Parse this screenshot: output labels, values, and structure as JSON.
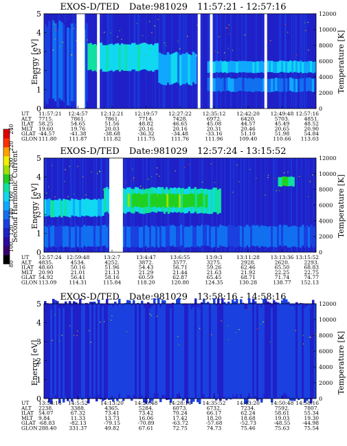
{
  "colorbar": {
    "label": "Second Harmonic Current",
    "ticks": [
      "240",
      "220",
      "200",
      "180",
      "160",
      "140",
      "120",
      "100",
      "80"
    ],
    "colors": [
      "#000000",
      "#3a0070",
      "#2a0aa0",
      "#2020c8",
      "#1a40e0",
      "#1070f0",
      "#10a8ff",
      "#10d8f0",
      "#10e0a0",
      "#20d020",
      "#a0e000",
      "#f0f000",
      "#ffa000",
      "#ff3000",
      "#e00000"
    ]
  },
  "panels": [
    {
      "title": "EXOS-D/TED",
      "date": "Date:981029",
      "time_range": "11:57:21 - 12:57:16",
      "ylabel": "Energy [eV]",
      "y2label": "Temperature [K]",
      "yticks": [
        "5",
        "4",
        "3",
        "2",
        "1",
        "0"
      ],
      "y2ticks": [
        "12000",
        "10000",
        "8000",
        "6000",
        "4000",
        "2000",
        "0"
      ],
      "ut_row_names": [
        "UT",
        "ALT",
        "ILAT",
        "MLT",
        "GLAT",
        "GLON"
      ],
      "columns": [
        [
          "11:57:21",
          "7715.",
          "58.25",
          "19.60",
          "-44.57",
          "111.80"
        ],
        [
          "12:4:57",
          "7861.",
          "54.65",
          "19.76",
          "-41.38",
          "111.87"
        ],
        [
          "12:12:21",
          "7861.",
          "51.56",
          "20.03",
          "-38.68",
          "111.82"
        ],
        [
          "12:19:57",
          "7714.",
          "48.82",
          "20.16",
          "-36.32",
          "111.75"
        ],
        [
          "12:27:22",
          "7428.",
          "46.65",
          "20.16",
          "-34.48",
          "111.76"
        ],
        [
          "12:35:12",
          "6972.",
          "45.08",
          "20.31",
          "-33.16",
          "111.96"
        ],
        [
          "12:42:20",
          "6420.",
          "44.57",
          "20.46",
          "51.10",
          "109.40"
        ],
        [
          "12:49:48",
          "5703.",
          "45.49",
          "20.65",
          "51.98",
          "110.66"
        ],
        [
          "12:57:16",
          "4851.",
          "48.52",
          "20.90",
          "54.84",
          "113.03"
        ]
      ]
    },
    {
      "title": "EXOS-D/TED",
      "date": "Date:981029",
      "time_range": "12:57:24 - 13:15:52",
      "ylabel": "Energy [eV]",
      "y2label": "Temperature [K]",
      "yticks": [
        "5",
        "4",
        "3",
        "2",
        "1",
        "0"
      ],
      "y2ticks": [
        "12000",
        "10000",
        "8000",
        "6000",
        "4000",
        "2000",
        "0"
      ],
      "ut_row_names": [
        "UT",
        "ALT",
        "ILAT",
        "MLT",
        "GLAT",
        "GLON"
      ],
      "columns": [
        [
          "12:57:24",
          "4835.",
          "48.60",
          "20.90",
          "54.92",
          "113.09"
        ],
        [
          "12:59:48",
          "4534.",
          "50.16",
          "21.01",
          "56.41",
          "114.31"
        ],
        [
          "13:2:7",
          "4252.",
          "51.96",
          "21.13",
          "58.16",
          "115.84"
        ],
        [
          "13:4:47",
          "3872.",
          "54.43",
          "21.29",
          "60.59",
          "118.20"
        ],
        [
          "13:6:55",
          "3577.",
          "56.71",
          "21.44",
          "62.87",
          "120.80"
        ],
        [
          "13:9:3",
          "3275.",
          "59.26",
          "21.63",
          "65.45",
          "124.35"
        ],
        [
          "13:11:28",
          "2928.",
          "62.46",
          "21.92",
          "68.71",
          "130.28"
        ],
        [
          "13:13:36",
          "2620.",
          "65.50",
          "22.25",
          "71.74",
          "138.77"
        ],
        [
          "13:15:52",
          "2293.",
          "68.83",
          "22.75",
          "74.77",
          "152.13"
        ]
      ]
    },
    {
      "title": "EXOS-D/TED",
      "date": "Date:981029",
      "time_range": "13:58:16 - 14:58:16",
      "ylabel": "Energy [eV]",
      "y2label": "Temperature [K]",
      "yticks": [
        "5",
        "4",
        "3",
        "2",
        "1",
        "0"
      ],
      "y2ticks": [
        "12000",
        "10000",
        "8000",
        "6000",
        "4000",
        "2000",
        "0"
      ],
      "ut_row_names": [
        "UT",
        "ALT",
        "ILAT",
        "MLT",
        "GLAT",
        "GLON"
      ],
      "columns": [
        [
          "13:58:16",
          "2238.",
          "54.07",
          "9.84",
          "-68.83",
          "288.40"
        ],
        [
          "14:5:52",
          "3388.",
          "67.32",
          "11.33",
          "-82.13",
          "331.37"
        ],
        [
          "14:13:20",
          "4365.",
          "73.41",
          "13.73",
          "-79.15",
          "49.82"
        ],
        [
          "14:20:48",
          "5284.",
          "73.42",
          "16.06",
          "-70.89",
          "67.61"
        ],
        [
          "14:28:16",
          "6073.",
          "70.24",
          "17.42",
          "-63.72",
          "72.75"
        ],
        [
          "14:35:52",
          "6732.",
          "66.17",
          "18.20",
          "-57.68",
          "74.73"
        ],
        [
          "14:43:20",
          "7234.",
          "62.24",
          "18.68",
          "-52.73",
          "75.46"
        ],
        [
          "14:50:48",
          "7592.",
          "58.61",
          "19.03",
          "-48.55",
          "75.63"
        ],
        [
          "14:58:16",
          "7807.",
          "55.34",
          "19.30",
          "-44.98",
          "75.54"
        ]
      ]
    }
  ],
  "chart_data": [
    {
      "type": "heatmap",
      "title": "EXOS-D/TED Date:981029 11:57:21 - 12:57:16",
      "xlabel": "",
      "ylabel": "Energy [eV]",
      "y2label": "Temperature [K]",
      "ylim": [
        0,
        5
      ],
      "y2lim": [
        0,
        12000
      ],
      "x_ticks": [
        "11:57:21",
        "12:4:57",
        "12:12:21",
        "12:19:57",
        "12:27:22",
        "12:35:12",
        "12:42:20",
        "12:49:48",
        "12:57:16"
      ],
      "bands": [
        {
          "x": [
            0.0,
            0.16
          ],
          "ylim": [
            0.3,
            4.4
          ],
          "level": 0.22
        },
        {
          "x": [
            0.16,
            0.42
          ],
          "ylim": [
            2.0,
            3.4
          ],
          "level": 0.48
        },
        {
          "x": [
            0.42,
            0.56
          ],
          "ylim": [
            1.3,
            2.9
          ],
          "level": 0.38
        },
        {
          "x": [
            0.6,
            1.0
          ],
          "ylim": [
            1.9,
            2.5
          ],
          "level": 0.4
        },
        {
          "x": [
            0.6,
            1.0
          ],
          "ylim": [
            0.9,
            1.6
          ],
          "level": 0.3
        }
      ],
      "gaps": [
        [
          0.12,
          0.15
        ],
        [
          0.195,
          0.205
        ],
        [
          0.565,
          0.575
        ],
        [
          0.61,
          0.62
        ],
        [
          0.81,
          0.82
        ]
      ]
    },
    {
      "type": "heatmap",
      "title": "EXOS-D/TED Date:981029 12:57:24 - 13:15:52",
      "xlabel": "",
      "ylabel": "Energy [eV]",
      "y2label": "Temperature [K]",
      "ylim": [
        0,
        5
      ],
      "y2lim": [
        0,
        12000
      ],
      "x_ticks": [
        "12:57:24",
        "12:59:48",
        "13:2:7",
        "13:4:47",
        "13:6:55",
        "13:9:3",
        "13:11:28",
        "13:13:36",
        "13:15:52"
      ],
      "bands": [
        {
          "x": [
            0.0,
            0.22
          ],
          "ylim": [
            1.9,
            2.8
          ],
          "level": 0.46
        },
        {
          "x": [
            0.22,
            0.65
          ],
          "ylim": [
            2.1,
            3.4
          ],
          "level": 0.52
        },
        {
          "x": [
            0.3,
            0.6
          ],
          "ylim": [
            2.4,
            3.1
          ],
          "level": 0.62
        },
        {
          "x": [
            0.0,
            1.0
          ],
          "ylim": [
            0.3,
            1.4
          ],
          "level": 0.26
        },
        {
          "x": [
            0.86,
            0.92
          ],
          "ylim": [
            3.5,
            4.0
          ],
          "level": 0.55
        }
      ],
      "gaps": [
        [
          0.24,
          0.29
        ]
      ]
    },
    {
      "type": "heatmap",
      "title": "EXOS-D/TED Date:981029 13:58:16 - 14:58:16",
      "xlabel": "",
      "ylabel": "Energy [eV]",
      "y2label": "Temperature [K]",
      "ylim": [
        0,
        5
      ],
      "y2lim": [
        0,
        12000
      ],
      "x_ticks": [
        "13:58:16",
        "14:5:52",
        "14:13:20",
        "14:20:48",
        "14:28:16",
        "14:35:52",
        "14:43:20",
        "14:50:48",
        "14:58:16"
      ],
      "bands": [
        {
          "x": [
            0.0,
            1.0
          ],
          "ylim": [
            0.0,
            5.0
          ],
          "level": 0.18
        }
      ],
      "gaps": []
    }
  ]
}
